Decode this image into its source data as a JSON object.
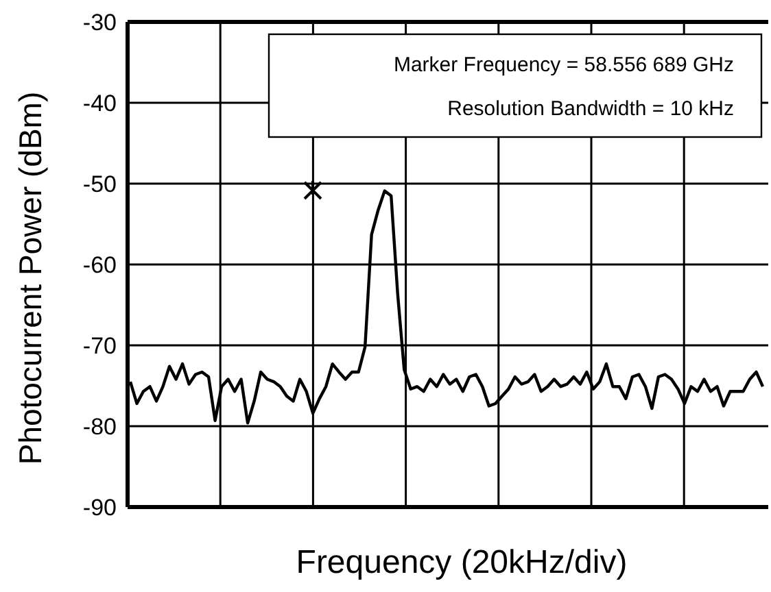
{
  "chart_data": {
    "type": "line",
    "xlabel": "Frequency (20kHz/div)",
    "ylabel": "Photocurrent Power (dBm)",
    "annotations": [
      "Marker Frequency = 58.556 689 GHz",
      "Resolution Bandwidth = 10 kHz"
    ],
    "categories": [
      null,
      null,
      null,
      null,
      null,
      null,
      null,
      null,
      null,
      null,
      null,
      null,
      null,
      null,
      null,
      null,
      null,
      null,
      null,
      null,
      null,
      null,
      null,
      null,
      null,
      null,
      null,
      null,
      null,
      null,
      null,
      null,
      null,
      null,
      null,
      null,
      null,
      null,
      null,
      null,
      null,
      null,
      null,
      null,
      null,
      null,
      null,
      null,
      null,
      null,
      null,
      null,
      null,
      null,
      null,
      null,
      null,
      null,
      null,
      null,
      null,
      null,
      null,
      null,
      null,
      null,
      null,
      null,
      null,
      null,
      null,
      null,
      null,
      null,
      null,
      null,
      null,
      null,
      null,
      null,
      null,
      null,
      null,
      null,
      null,
      null,
      null,
      null,
      null,
      null,
      null,
      null,
      null,
      null,
      null,
      null,
      null,
      null
    ],
    "ylim": [
      -90,
      -30
    ],
    "yticks": [
      -90,
      -80,
      -70,
      -60,
      -50,
      -40,
      -30
    ],
    "grid": true,
    "series": [
      {
        "color": "#000000",
        "line_style": "solid",
        "values": [
          -74.5,
          -77.2,
          -75.7,
          -75.1,
          -76.9,
          -75.1,
          -72.6,
          -74.2,
          -72.3,
          -74.8,
          -73.6,
          -73.3,
          -73.9,
          -79.3,
          -75.1,
          -74.2,
          -75.7,
          -74.2,
          -79.6,
          -76.9,
          -73.3,
          -74.2,
          -74.5,
          -75.1,
          -76.3,
          -76.9,
          -74.2,
          -75.7,
          -78.4,
          -76.6,
          -75.1,
          -72.3,
          -73.3,
          -74.2,
          -73.3,
          -73.3,
          -70.2,
          -56.3,
          -53.3,
          -50.9,
          -51.5,
          -63.6,
          -73.0,
          -75.4,
          -75.1,
          -75.7,
          -74.2,
          -75.1,
          -73.6,
          -74.8,
          -74.2,
          -75.7,
          -73.9,
          -73.6,
          -75.1,
          -77.5,
          -77.2,
          -76.3,
          -75.4,
          -73.9,
          -74.8,
          -74.5,
          -73.6,
          -75.7,
          -75.1,
          -74.2,
          -75.1,
          -74.8,
          -73.9,
          -74.8,
          -73.3,
          -75.4,
          -74.5,
          -72.3,
          -75.1,
          -75.1,
          -76.6,
          -73.9,
          -73.6,
          -75.1,
          -77.8,
          -73.9,
          -73.6,
          -74.2,
          -75.4,
          -77.2,
          -75.1,
          -75.7,
          -74.2,
          -75.7,
          -75.1,
          -77.5,
          -75.7,
          -75.7,
          -75.7,
          -74.2,
          -73.3,
          -75.1
        ]
      }
    ]
  }
}
